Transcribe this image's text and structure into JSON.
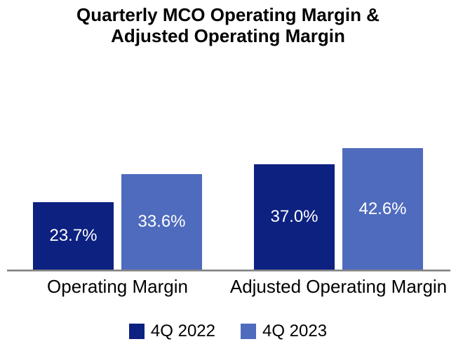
{
  "title": {
    "line1": "Quarterly MCO Operating Margin &",
    "line2": "Adjusted Operating Margin"
  },
  "chart_data": {
    "type": "bar",
    "title": "Quarterly MCO Operating Margin & Adjusted Operating Margin",
    "categories": [
      "Operating Margin",
      "Adjusted Operating Margin"
    ],
    "series": [
      {
        "name": "4Q 2022",
        "color": "#0D2180",
        "values": [
          23.7,
          37.0
        ],
        "labels": [
          "23.7%",
          "37.0%"
        ]
      },
      {
        "name": "4Q 2023",
        "color": "#4F6BBE",
        "values": [
          33.6,
          42.6
        ],
        "labels": [
          "33.6%",
          "42.6%"
        ]
      }
    ],
    "value_label_color": "#ffffff",
    "grid": false,
    "legend_position": "bottom",
    "axis_line_color": "#828282"
  }
}
